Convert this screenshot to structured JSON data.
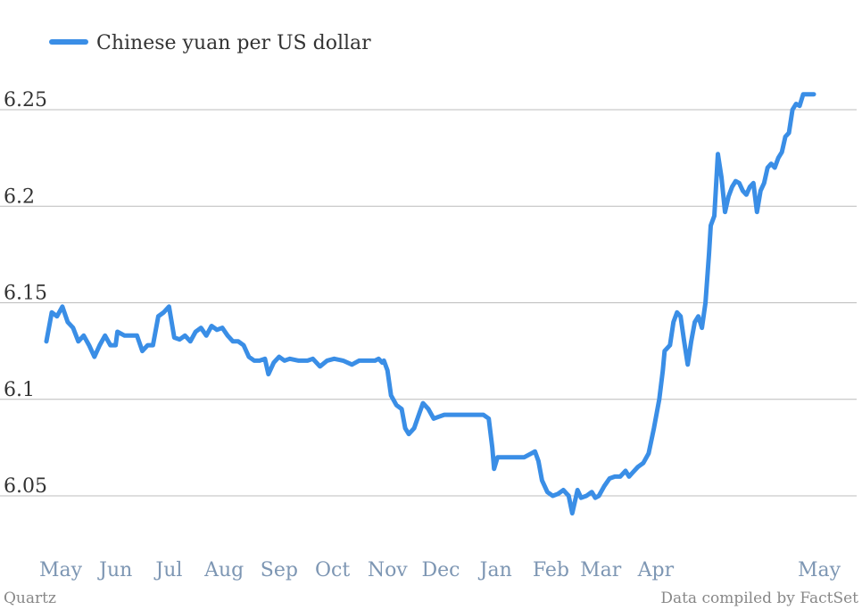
{
  "chart_data": {
    "type": "line",
    "series": [
      {
        "name": "Chinese yuan per US dollar",
        "color": "#3a8ee6",
        "points": [
          [
            "2013-05-01",
            6.13
          ],
          [
            "2013-05-04",
            6.145
          ],
          [
            "2013-05-07",
            6.143
          ],
          [
            "2013-05-10",
            6.148
          ],
          [
            "2013-05-13",
            6.14
          ],
          [
            "2013-05-16",
            6.137
          ],
          [
            "2013-05-19",
            6.13
          ],
          [
            "2013-05-22",
            6.133
          ],
          [
            "2013-05-25",
            6.128
          ],
          [
            "2013-05-28",
            6.122
          ],
          [
            "2013-05-31",
            6.128
          ],
          [
            "2013-06-03",
            6.133
          ],
          [
            "2013-06-06",
            6.128
          ],
          [
            "2013-06-09",
            6.128
          ],
          [
            "2013-06-10",
            6.135
          ],
          [
            "2013-06-14",
            6.133
          ],
          [
            "2013-06-18",
            6.133
          ],
          [
            "2013-06-21",
            6.133
          ],
          [
            "2013-06-24",
            6.125
          ],
          [
            "2013-06-27",
            6.128
          ],
          [
            "2013-06-30",
            6.128
          ],
          [
            "2013-07-03",
            6.143
          ],
          [
            "2013-07-06",
            6.145
          ],
          [
            "2013-07-09",
            6.148
          ],
          [
            "2013-07-12",
            6.132
          ],
          [
            "2013-07-15",
            6.131
          ],
          [
            "2013-07-18",
            6.133
          ],
          [
            "2013-07-21",
            6.13
          ],
          [
            "2013-07-24",
            6.135
          ],
          [
            "2013-07-27",
            6.137
          ],
          [
            "2013-07-30",
            6.133
          ],
          [
            "2013-08-02",
            6.138
          ],
          [
            "2013-08-05",
            6.136
          ],
          [
            "2013-08-08",
            6.137
          ],
          [
            "2013-08-11",
            6.133
          ],
          [
            "2013-08-14",
            6.13
          ],
          [
            "2013-08-17",
            6.13
          ],
          [
            "2013-08-20",
            6.128
          ],
          [
            "2013-08-23",
            6.122
          ],
          [
            "2013-08-26",
            6.12
          ],
          [
            "2013-08-29",
            6.12
          ],
          [
            "2013-09-01",
            6.121
          ],
          [
            "2013-09-03",
            6.113
          ],
          [
            "2013-09-06",
            6.119
          ],
          [
            "2013-09-09",
            6.122
          ],
          [
            "2013-09-12",
            6.12
          ],
          [
            "2013-09-15",
            6.121
          ],
          [
            "2013-09-20",
            6.12
          ],
          [
            "2013-09-25",
            6.12
          ],
          [
            "2013-09-28",
            6.121
          ],
          [
            "2013-10-02",
            6.117
          ],
          [
            "2013-10-06",
            6.12
          ],
          [
            "2013-10-10",
            6.121
          ],
          [
            "2013-10-15",
            6.12
          ],
          [
            "2013-10-20",
            6.118
          ],
          [
            "2013-10-24",
            6.12
          ],
          [
            "2013-10-28",
            6.12
          ],
          [
            "2013-11-02",
            6.12
          ],
          [
            "2013-11-04",
            6.121
          ],
          [
            "2013-11-06",
            6.119
          ],
          [
            "2013-11-07",
            6.12
          ],
          [
            "2013-11-09",
            6.115
          ],
          [
            "2013-11-11",
            6.102
          ],
          [
            "2013-11-14",
            6.097
          ],
          [
            "2013-11-17",
            6.095
          ],
          [
            "2013-11-19",
            6.085
          ],
          [
            "2013-11-21",
            6.082
          ],
          [
            "2013-11-24",
            6.085
          ],
          [
            "2013-11-27",
            6.093
          ],
          [
            "2013-11-29",
            6.098
          ],
          [
            "2013-12-02",
            6.095
          ],
          [
            "2013-12-05",
            6.09
          ],
          [
            "2013-12-08",
            6.091
          ],
          [
            "2013-12-11",
            6.092
          ],
          [
            "2013-12-16",
            6.092
          ],
          [
            "2013-12-22",
            6.092
          ],
          [
            "2013-12-27",
            6.092
          ],
          [
            "2014-01-02",
            6.092
          ],
          [
            "2014-01-05",
            6.09
          ],
          [
            "2014-01-07",
            6.075
          ],
          [
            "2014-01-08",
            6.064
          ],
          [
            "2014-01-10",
            6.07
          ],
          [
            "2014-01-15",
            6.07
          ],
          [
            "2014-01-20",
            6.07
          ],
          [
            "2014-01-25",
            6.07
          ],
          [
            "2014-01-29",
            6.072
          ],
          [
            "2014-01-31",
            6.073
          ],
          [
            "2014-02-02",
            6.068
          ],
          [
            "2014-02-04",
            6.058
          ],
          [
            "2014-02-07",
            6.052
          ],
          [
            "2014-02-10",
            6.05
          ],
          [
            "2014-02-13",
            6.051
          ],
          [
            "2014-02-16",
            6.053
          ],
          [
            "2014-02-19",
            6.05
          ],
          [
            "2014-02-21",
            6.041
          ],
          [
            "2014-02-24",
            6.053
          ],
          [
            "2014-02-26",
            6.049
          ],
          [
            "2014-03-01",
            6.05
          ],
          [
            "2014-03-04",
            6.052
          ],
          [
            "2014-03-06",
            6.049
          ],
          [
            "2014-03-08",
            6.05
          ],
          [
            "2014-03-11",
            6.055
          ],
          [
            "2014-03-14",
            6.059
          ],
          [
            "2014-03-17",
            6.06
          ],
          [
            "2014-03-20",
            6.06
          ],
          [
            "2014-03-23",
            6.063
          ],
          [
            "2014-03-25",
            6.06
          ],
          [
            "2014-03-27",
            6.062
          ],
          [
            "2014-03-30",
            6.065
          ],
          [
            "2014-04-02",
            6.067
          ],
          [
            "2014-04-05",
            6.072
          ],
          [
            "2014-04-08",
            6.085
          ],
          [
            "2014-04-11",
            6.1
          ],
          [
            "2014-04-13",
            6.115
          ],
          [
            "2014-04-14",
            6.125
          ],
          [
            "2014-04-17",
            6.128
          ],
          [
            "2014-04-19",
            6.14
          ],
          [
            "2014-04-21",
            6.145
          ],
          [
            "2014-04-23",
            6.143
          ],
          [
            "2014-04-25",
            6.13
          ],
          [
            "2014-04-27",
            6.118
          ],
          [
            "2014-04-29",
            6.13
          ],
          [
            "2014-05-01",
            6.14
          ],
          [
            "2014-05-03",
            6.143
          ],
          [
            "2014-05-05",
            6.137
          ],
          [
            "2014-05-07",
            6.15
          ],
          [
            "2014-05-09",
            6.175
          ],
          [
            "2014-05-10",
            6.19
          ],
          [
            "2014-05-12",
            6.195
          ],
          [
            "2014-05-14",
            6.227
          ],
          [
            "2014-05-16",
            6.215
          ],
          [
            "2014-05-18",
            6.197
          ],
          [
            "2014-05-20",
            6.205
          ],
          [
            "2014-05-22",
            6.21
          ],
          [
            "2014-05-24",
            6.213
          ],
          [
            "2014-05-26",
            6.212
          ],
          [
            "2014-05-28",
            6.208
          ],
          [
            "2014-05-30",
            6.206
          ],
          [
            "2014-06-01",
            6.21
          ],
          [
            "2014-06-03",
            6.212
          ],
          [
            "2014-06-05",
            6.197
          ],
          [
            "2014-06-07",
            6.208
          ],
          [
            "2014-06-09",
            6.212
          ],
          [
            "2014-06-11",
            6.22
          ],
          [
            "2014-06-13",
            6.222
          ],
          [
            "2014-06-15",
            6.22
          ],
          [
            "2014-06-17",
            6.225
          ],
          [
            "2014-06-19",
            6.228
          ],
          [
            "2014-06-21",
            6.236
          ],
          [
            "2014-06-23",
            6.238
          ],
          [
            "2014-06-25",
            6.25
          ],
          [
            "2014-06-27",
            6.253
          ],
          [
            "2014-06-29",
            6.252
          ],
          [
            "2014-07-01",
            6.258
          ],
          [
            "2014-07-04",
            6.258
          ],
          [
            "2014-07-07",
            6.258
          ]
        ]
      }
    ],
    "x_tick_labels": [
      "May",
      "Jun",
      "Jul",
      "Aug",
      "Sep",
      "Oct",
      "Nov",
      "Dec",
      "Jan",
      "Feb",
      "Mar",
      "Apr",
      "May"
    ],
    "x_tick_dates": [
      "2013-05-01",
      "2013-06-01",
      "2013-07-01",
      "2013-08-01",
      "2013-09-01",
      "2013-10-01",
      "2013-11-01",
      "2013-12-01",
      "2014-01-01",
      "2014-02-01",
      "2014-03-01",
      "2014-04-01",
      "2014-05-01"
    ],
    "y_ticks": [
      6.05,
      6.1,
      6.15,
      6.2,
      6.25
    ],
    "ylim": [
      6.03,
      6.28
    ],
    "grid": true,
    "legend_position": "top-left",
    "source_left": "Quartz",
    "source_right": "Data compiled by FactSet"
  }
}
